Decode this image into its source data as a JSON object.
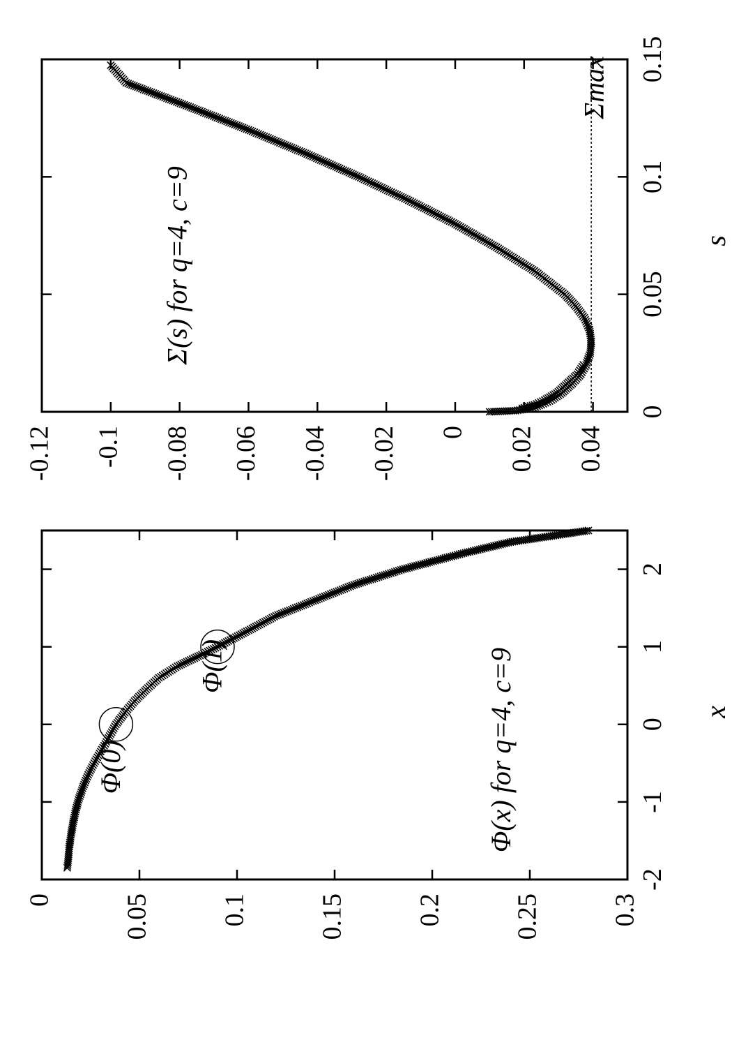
{
  "chart_data": [
    {
      "type": "scatter",
      "title": "",
      "xlabel": "x",
      "ylabel": "",
      "xlim": [
        -2,
        2.5
      ],
      "ylim": [
        0,
        0.3
      ],
      "x_ticks": [
        -2,
        -1,
        0,
        1,
        2
      ],
      "y_ticks": [
        0,
        0.05,
        0.1,
        0.15,
        0.2,
        0.25,
        0.3
      ],
      "x_tick_labels": [
        "-2",
        "-1",
        "0",
        "1",
        "2"
      ],
      "y_tick_labels": [
        "0",
        "0.05",
        "0.1",
        "0.15",
        "0.2",
        "0.25",
        "0.3"
      ],
      "marker": "x",
      "grid": false,
      "orientation": "rotated 90° counter-clockwise",
      "annotations": [
        {
          "text": "Φ(x) for q=4, c=9",
          "x": -1.65,
          "y": 0.24
        },
        {
          "text": "Φ(1)",
          "x": 0.75,
          "y": 0.092
        },
        {
          "text": "Φ(0)",
          "x": -0.55,
          "y": 0.04
        }
      ],
      "highlight_points": [
        {
          "label": "Φ(1)",
          "x": 1.0,
          "y": 0.09
        },
        {
          "label": "Φ(0)",
          "x": 0.0,
          "y": 0.038
        }
      ],
      "series": [
        {
          "points": [
            [
              -1.85,
              0.013
            ],
            [
              -1.75,
              0.0135
            ],
            [
              -1.6,
              0.014
            ],
            [
              -1.45,
              0.0148
            ],
            [
              -1.3,
              0.0158
            ],
            [
              -1.15,
              0.017
            ],
            [
              -1.0,
              0.0185
            ],
            [
              -0.85,
              0.0205
            ],
            [
              -0.7,
              0.0228
            ],
            [
              -0.55,
              0.0257
            ],
            [
              -0.4,
              0.029
            ],
            [
              -0.25,
              0.0325
            ],
            [
              -0.1,
              0.0358
            ],
            [
              0.0,
              0.038
            ],
            [
              0.15,
              0.0425
            ],
            [
              0.3,
              0.0475
            ],
            [
              0.45,
              0.0535
            ],
            [
              0.6,
              0.06
            ],
            [
              0.75,
              0.0695
            ],
            [
              0.9,
              0.082
            ],
            [
              1.0,
              0.09
            ],
            [
              1.2,
              0.105
            ],
            [
              1.4,
              0.12
            ],
            [
              1.6,
              0.14
            ],
            [
              1.8,
              0.16
            ],
            [
              2.0,
              0.185
            ],
            [
              2.2,
              0.215
            ],
            [
              2.35,
              0.24
            ],
            [
              2.5,
              0.28
            ]
          ]
        }
      ]
    },
    {
      "type": "scatter",
      "title": "",
      "xlabel": "s",
      "ylabel": "",
      "xlim": [
        0,
        0.15
      ],
      "ylim": [
        -0.12,
        0.05
      ],
      "x_ticks": [
        0,
        0.05,
        0.1,
        0.15
      ],
      "y_ticks": [
        0.04,
        0.02,
        0,
        -0.02,
        -0.04,
        -0.06,
        -0.08,
        -0.1,
        -0.12
      ],
      "x_tick_labels": [
        "0",
        "0.05",
        "0.1",
        "0.15"
      ],
      "y_tick_labels": [
        "0.04",
        "0.02",
        "0",
        "-0.02",
        "-0.04",
        "-0.06",
        "-0.08",
        "-0.1",
        "-0.12"
      ],
      "marker": "x",
      "grid": false,
      "orientation": "rotated 90° counter-clockwise",
      "reference_line": {
        "label": "Σmax",
        "y": 0.0395
      },
      "annotations": [
        {
          "text": "Σ(s) for q=4, c=9",
          "x": 0.02,
          "y": -0.078
        },
        {
          "text": "Σmax",
          "x": 0.138,
          "y": 0.043
        }
      ],
      "series": [
        {
          "points": [
            [
              0.0,
              0.01
            ],
            [
              0.0005,
              0.0175
            ],
            [
              0.0015,
              0.022
            ],
            [
              0.003,
              0.025
            ],
            [
              0.005,
              0.028
            ],
            [
              0.008,
              0.031
            ],
            [
              0.012,
              0.034
            ],
            [
              0.016,
              0.0365
            ],
            [
              0.02,
              0.038
            ],
            [
              0.025,
              0.0392
            ],
            [
              0.03,
              0.0395
            ],
            [
              0.035,
              0.039
            ],
            [
              0.04,
              0.0375
            ],
            [
              0.045,
              0.035
            ],
            [
              0.05,
              0.0318
            ],
            [
              0.06,
              0.023
            ],
            [
              0.07,
              0.012
            ],
            [
              0.08,
              0.0
            ],
            [
              0.09,
              -0.0135
            ],
            [
              0.1,
              -0.028
            ],
            [
              0.11,
              -0.0435
            ],
            [
              0.12,
              -0.06
            ],
            [
              0.13,
              -0.0775
            ],
            [
              0.14,
              -0.0955
            ],
            [
              0.1475,
              -0.1
            ]
          ]
        },
        {
          "points": [
            [
              0.0015,
              0.0195
            ],
            [
              0.003,
              0.023
            ],
            [
              0.005,
              0.026
            ],
            [
              0.008,
              0.0295
            ],
            [
              0.012,
              0.0325
            ],
            [
              0.016,
              0.0355
            ],
            [
              0.02,
              0.0372
            ]
          ]
        }
      ]
    }
  ]
}
